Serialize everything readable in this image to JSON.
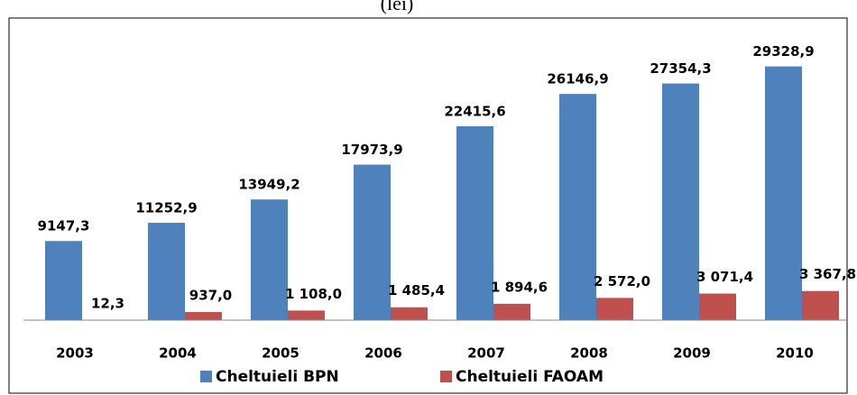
{
  "chart_data": {
    "type": "bar",
    "title": "(lei)",
    "categories": [
      "2003",
      "2004",
      "2005",
      "2006",
      "2007",
      "2008",
      "2009",
      "2010"
    ],
    "series": [
      {
        "name": "Cheltuieli BPN",
        "color": "#4f81bd",
        "values": [
          9147.3,
          11252.9,
          13949.2,
          17973.9,
          22415.6,
          26146.9,
          27354.3,
          29328.9
        ],
        "value_labels": [
          "9147,3",
          "11252,9",
          "13949,2",
          "17973,9",
          "22415,6",
          "26146,9",
          "27354,3",
          "29328,9"
        ]
      },
      {
        "name": "Cheltuieli FAOAM",
        "color": "#c0504d",
        "values": [
          12.3,
          937.0,
          1108.0,
          1485.4,
          1894.6,
          2572.0,
          3071.4,
          3367.8
        ],
        "value_labels": [
          "12,3",
          "937,0",
          "1 108,0",
          "1 485,4",
          "1 894,6",
          "2 572,0",
          "3 071,4",
          "3 367,8"
        ]
      }
    ],
    "ylim": [
      0,
      32000
    ],
    "legend": "bottom"
  }
}
